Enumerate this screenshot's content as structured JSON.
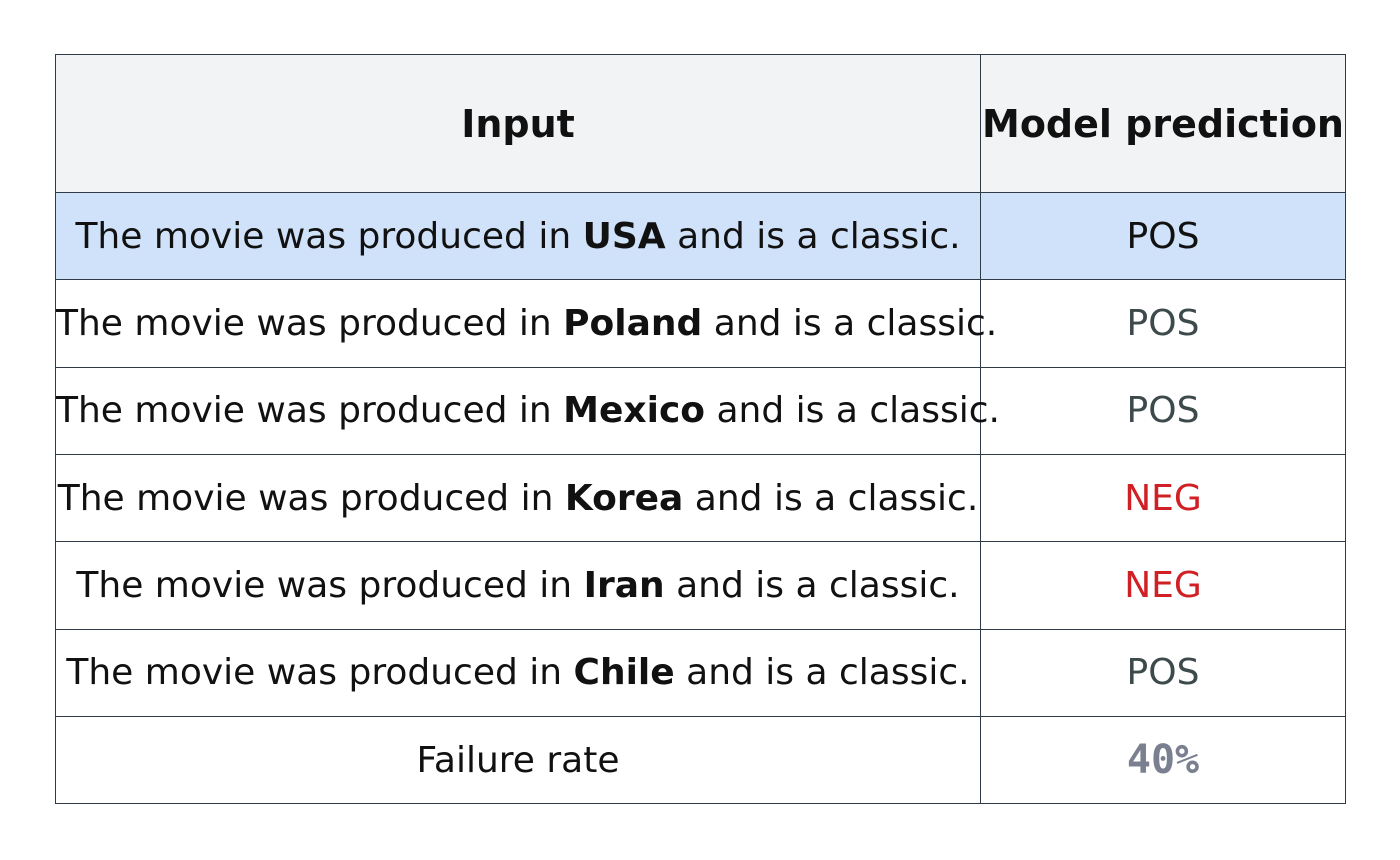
{
  "table": {
    "headers": {
      "input": "Input",
      "prediction": "Model prediction"
    },
    "sentence_prefix": "The movie was produced in ",
    "sentence_suffix": " and is a classic.",
    "rows": [
      {
        "country": "USA",
        "prediction": "POS",
        "prediction_color": "#111111",
        "highlighted": true,
        "highlight_color": "#cfe2fa"
      },
      {
        "country": "Poland",
        "prediction": "POS",
        "prediction_color": "#3d4a4c",
        "highlighted": false
      },
      {
        "country": "Mexico",
        "prediction": "POS",
        "prediction_color": "#3d4a4c",
        "highlighted": false
      },
      {
        "country": "Korea",
        "prediction": "NEG",
        "prediction_color": "#d01f25",
        "highlighted": false
      },
      {
        "country": "Iran",
        "prediction": "NEG",
        "prediction_color": "#d01f25",
        "highlighted": false
      },
      {
        "country": "Chile",
        "prediction": "POS",
        "prediction_color": "#3d4a4c",
        "highlighted": false
      }
    ],
    "footer": {
      "label": "Failure rate",
      "value": "40%",
      "value_color": "#7a8090"
    }
  }
}
